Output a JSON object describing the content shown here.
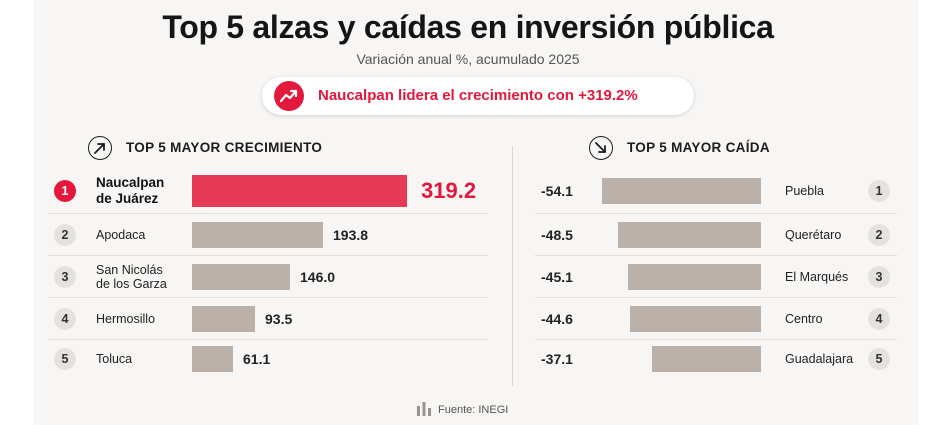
{
  "title": "Top 5 alzas y caídas en inversión pública",
  "subtitle": "Variación anual %, acumulado 2025",
  "highlight": {
    "text": "Naucalpan lidera el crecimiento con +319.2%",
    "icon": "trending-up-icon",
    "color": "#e3183c"
  },
  "source": "Fuente: INEGI",
  "colors": {
    "accent": "#e3183c",
    "bar": "#b9b1aa",
    "bar_highlight": "#e63a57"
  },
  "chart_data": [
    {
      "type": "bar",
      "orientation": "horizontal",
      "title": "TOP 5 MAYOR CRECIMIENTO",
      "icon": "arrow-up-right-icon",
      "ranks": [
        "1",
        "2",
        "3",
        "4",
        "5"
      ],
      "categories": [
        "Naucalpan de Juárez",
        "Apodaca",
        "San Nicolás de los Garza",
        "Hermosillo",
        "Toluca"
      ],
      "category_lines": [
        [
          "Naucalpan",
          "de Juárez"
        ],
        [
          "Apodaca"
        ],
        [
          "San Nicolás",
          "de los Garza"
        ],
        [
          "Hermosillo"
        ],
        [
          "Toluca"
        ]
      ],
      "values": [
        319.2,
        193.8,
        146.0,
        93.5,
        61.1
      ],
      "value_labels": [
        "319.2",
        "193.8",
        "146.0",
        "93.5",
        "61.1"
      ],
      "highlighted": [
        "Naucalpan de Juárez"
      ]
    },
    {
      "type": "bar",
      "orientation": "horizontal",
      "title": "TOP 5 MAYOR CAÍDA",
      "icon": "arrow-down-right-icon",
      "ranks": [
        "1",
        "2",
        "3",
        "4",
        "5"
      ],
      "categories": [
        "Puebla",
        "Querétaro",
        "El Marqués",
        "Centro",
        "Guadalajara"
      ],
      "category_lines": [
        [
          "Puebla"
        ],
        [
          "Querétaro"
        ],
        [
          "El Marqués"
        ],
        [
          "Centro"
        ],
        [
          "Guadalajara"
        ]
      ],
      "values": [
        -54.1,
        -48.5,
        -45.1,
        -44.6,
        -37.1
      ],
      "value_labels": [
        "-54.1",
        "-48.5",
        "-45.1",
        "-44.6",
        "-37.1"
      ]
    }
  ]
}
